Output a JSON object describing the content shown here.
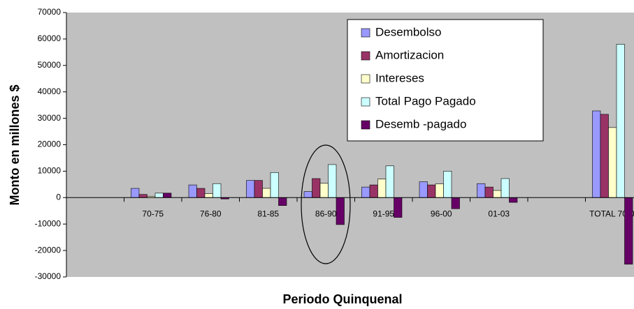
{
  "chart_data": {
    "type": "bar",
    "y_label": "Monto en millones $",
    "x_label": "Periodo Quinquenal",
    "categories": [
      null,
      "70-75",
      "76-80",
      "81-85",
      "86-90",
      "91-95",
      "96-00",
      "01-03",
      null,
      "TOTAL 70-03"
    ],
    "series": [
      {
        "name": "Desembolso",
        "color": "#9999ff",
        "values": [
          null,
          3500,
          4800,
          6500,
          2300,
          4000,
          6000,
          5300,
          null,
          32800
        ]
      },
      {
        "name": "Amortizacion",
        "color": "#993366",
        "values": [
          null,
          1200,
          3500,
          6500,
          7200,
          4800,
          4800,
          4000,
          null,
          31500
        ]
      },
      {
        "name": "Intereses",
        "color": "#ffffcc",
        "values": [
          null,
          500,
          1500,
          3500,
          5400,
          7000,
          5200,
          2700,
          null,
          26500
        ]
      },
      {
        "name": "Total Pago Pagado",
        "color": "#ccffff",
        "values": [
          null,
          1700,
          5300,
          9500,
          12500,
          12000,
          10000,
          7200,
          null,
          58000
        ]
      },
      {
        "name": "Desemb -pagado",
        "color": "#660066",
        "values": [
          null,
          1700,
          -500,
          -3000,
          -10200,
          -7500,
          -4200,
          -1800,
          null,
          -25200
        ]
      }
    ],
    "ylim": [
      -30000,
      70000
    ],
    "yticks": [
      -30000,
      -20000,
      -10000,
      0,
      10000,
      20000,
      30000,
      40000,
      50000,
      60000,
      70000
    ]
  }
}
